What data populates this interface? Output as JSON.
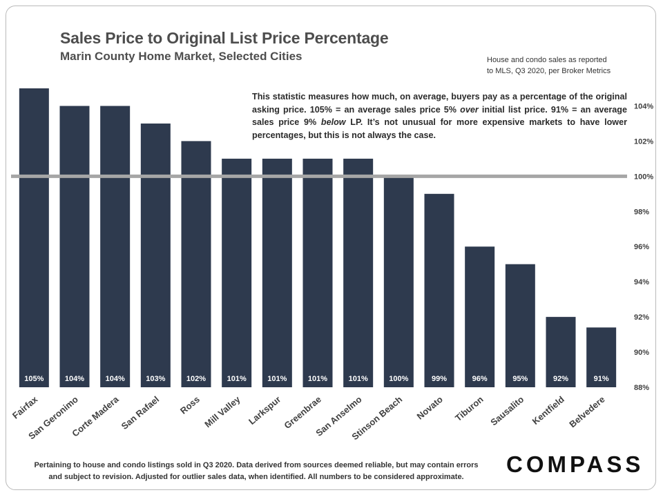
{
  "header": {
    "title": "Sales Price to Original List Price Percentage",
    "subtitle": "Marin County Home Market, Selected Cities",
    "source_line1": "House and condo sales as reported",
    "source_line2": "to MLS, Q3 2020, per Broker Metrics"
  },
  "note": {
    "part1": "This statistic measures how much, on average, buyers pay as a percentage of the original asking price. 105% = an average sales price 5% ",
    "em1": "over",
    "part2": " initial list price. 91% = an average sales price 9% ",
    "em2": "below",
    "part3": " LP. It’s not unusual for more expensive markets to have lower percentages, but this is not always the case."
  },
  "footer": {
    "line1": "Pertaining to house and condo listings sold in Q3 2020. Data derived from sources deemed reliable, but may contain errors",
    "line2": "and subject to revision. Adjusted for outlier sales data, when identified. All numbers to be considered approximate."
  },
  "logo": {
    "text": "COMPASS"
  },
  "colors": {
    "bar": "#2e3a4e",
    "reference_line": "#a6a6a6",
    "text": "#404040",
    "label": "#ffffff"
  },
  "chart_data": {
    "type": "bar",
    "title": "Sales Price to Original List Price Percentage",
    "categories": [
      "Fairfax",
      "San Geronimo",
      "Corte Madera",
      "San Rafael",
      "Ross",
      "Mill Valley",
      "Larkspur",
      "Greenbrae",
      "San Anselmo",
      "Stinson Beach",
      "Novato",
      "Tiburon",
      "Sausalito",
      "Kentfield",
      "Belvedere"
    ],
    "values": [
      105,
      104,
      104,
      103,
      102,
      101,
      101,
      101,
      101,
      100,
      99,
      96,
      95,
      92,
      91.4
    ],
    "data_labels": [
      "105%",
      "104%",
      "104%",
      "103%",
      "102%",
      "101%",
      "101%",
      "101%",
      "101%",
      "100%",
      "99%",
      "96%",
      "95%",
      "92%",
      "91%"
    ],
    "ylim": [
      88,
      105
    ],
    "yticks": [
      88,
      90,
      92,
      94,
      96,
      98,
      100,
      102,
      104
    ],
    "ytick_labels": [
      "88%",
      "90%",
      "92%",
      "94%",
      "96%",
      "98%",
      "100%",
      "102%",
      "104%"
    ],
    "reference_line": 100,
    "y_axis_side": "right",
    "grid": false
  }
}
